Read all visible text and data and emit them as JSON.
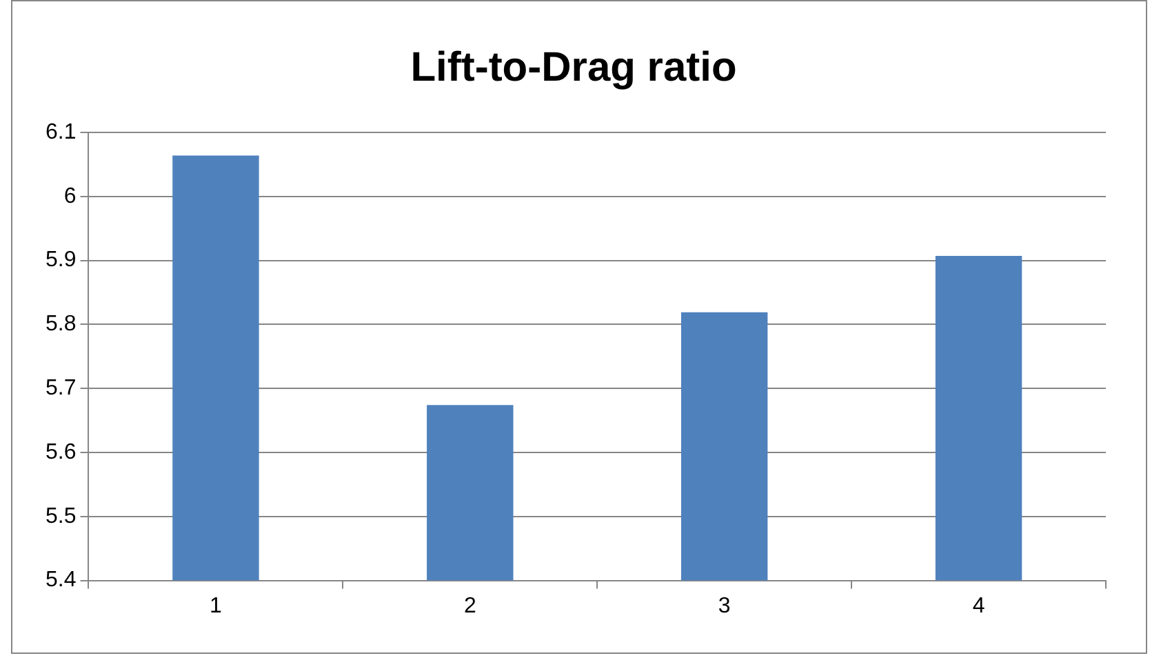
{
  "chart_data": {
    "type": "bar",
    "title": "Lift-to-Drag ratio",
    "categories": [
      "1",
      "2",
      "3",
      "4"
    ],
    "values": [
      6.064,
      5.674,
      5.819,
      5.907
    ],
    "color": "#4f81bd",
    "ylim": [
      5.4,
      6.1
    ],
    "yticks": [
      5.4,
      5.5,
      5.6,
      5.7,
      5.8,
      5.9,
      6,
      6.1
    ],
    "grid": "y",
    "legend": false
  }
}
